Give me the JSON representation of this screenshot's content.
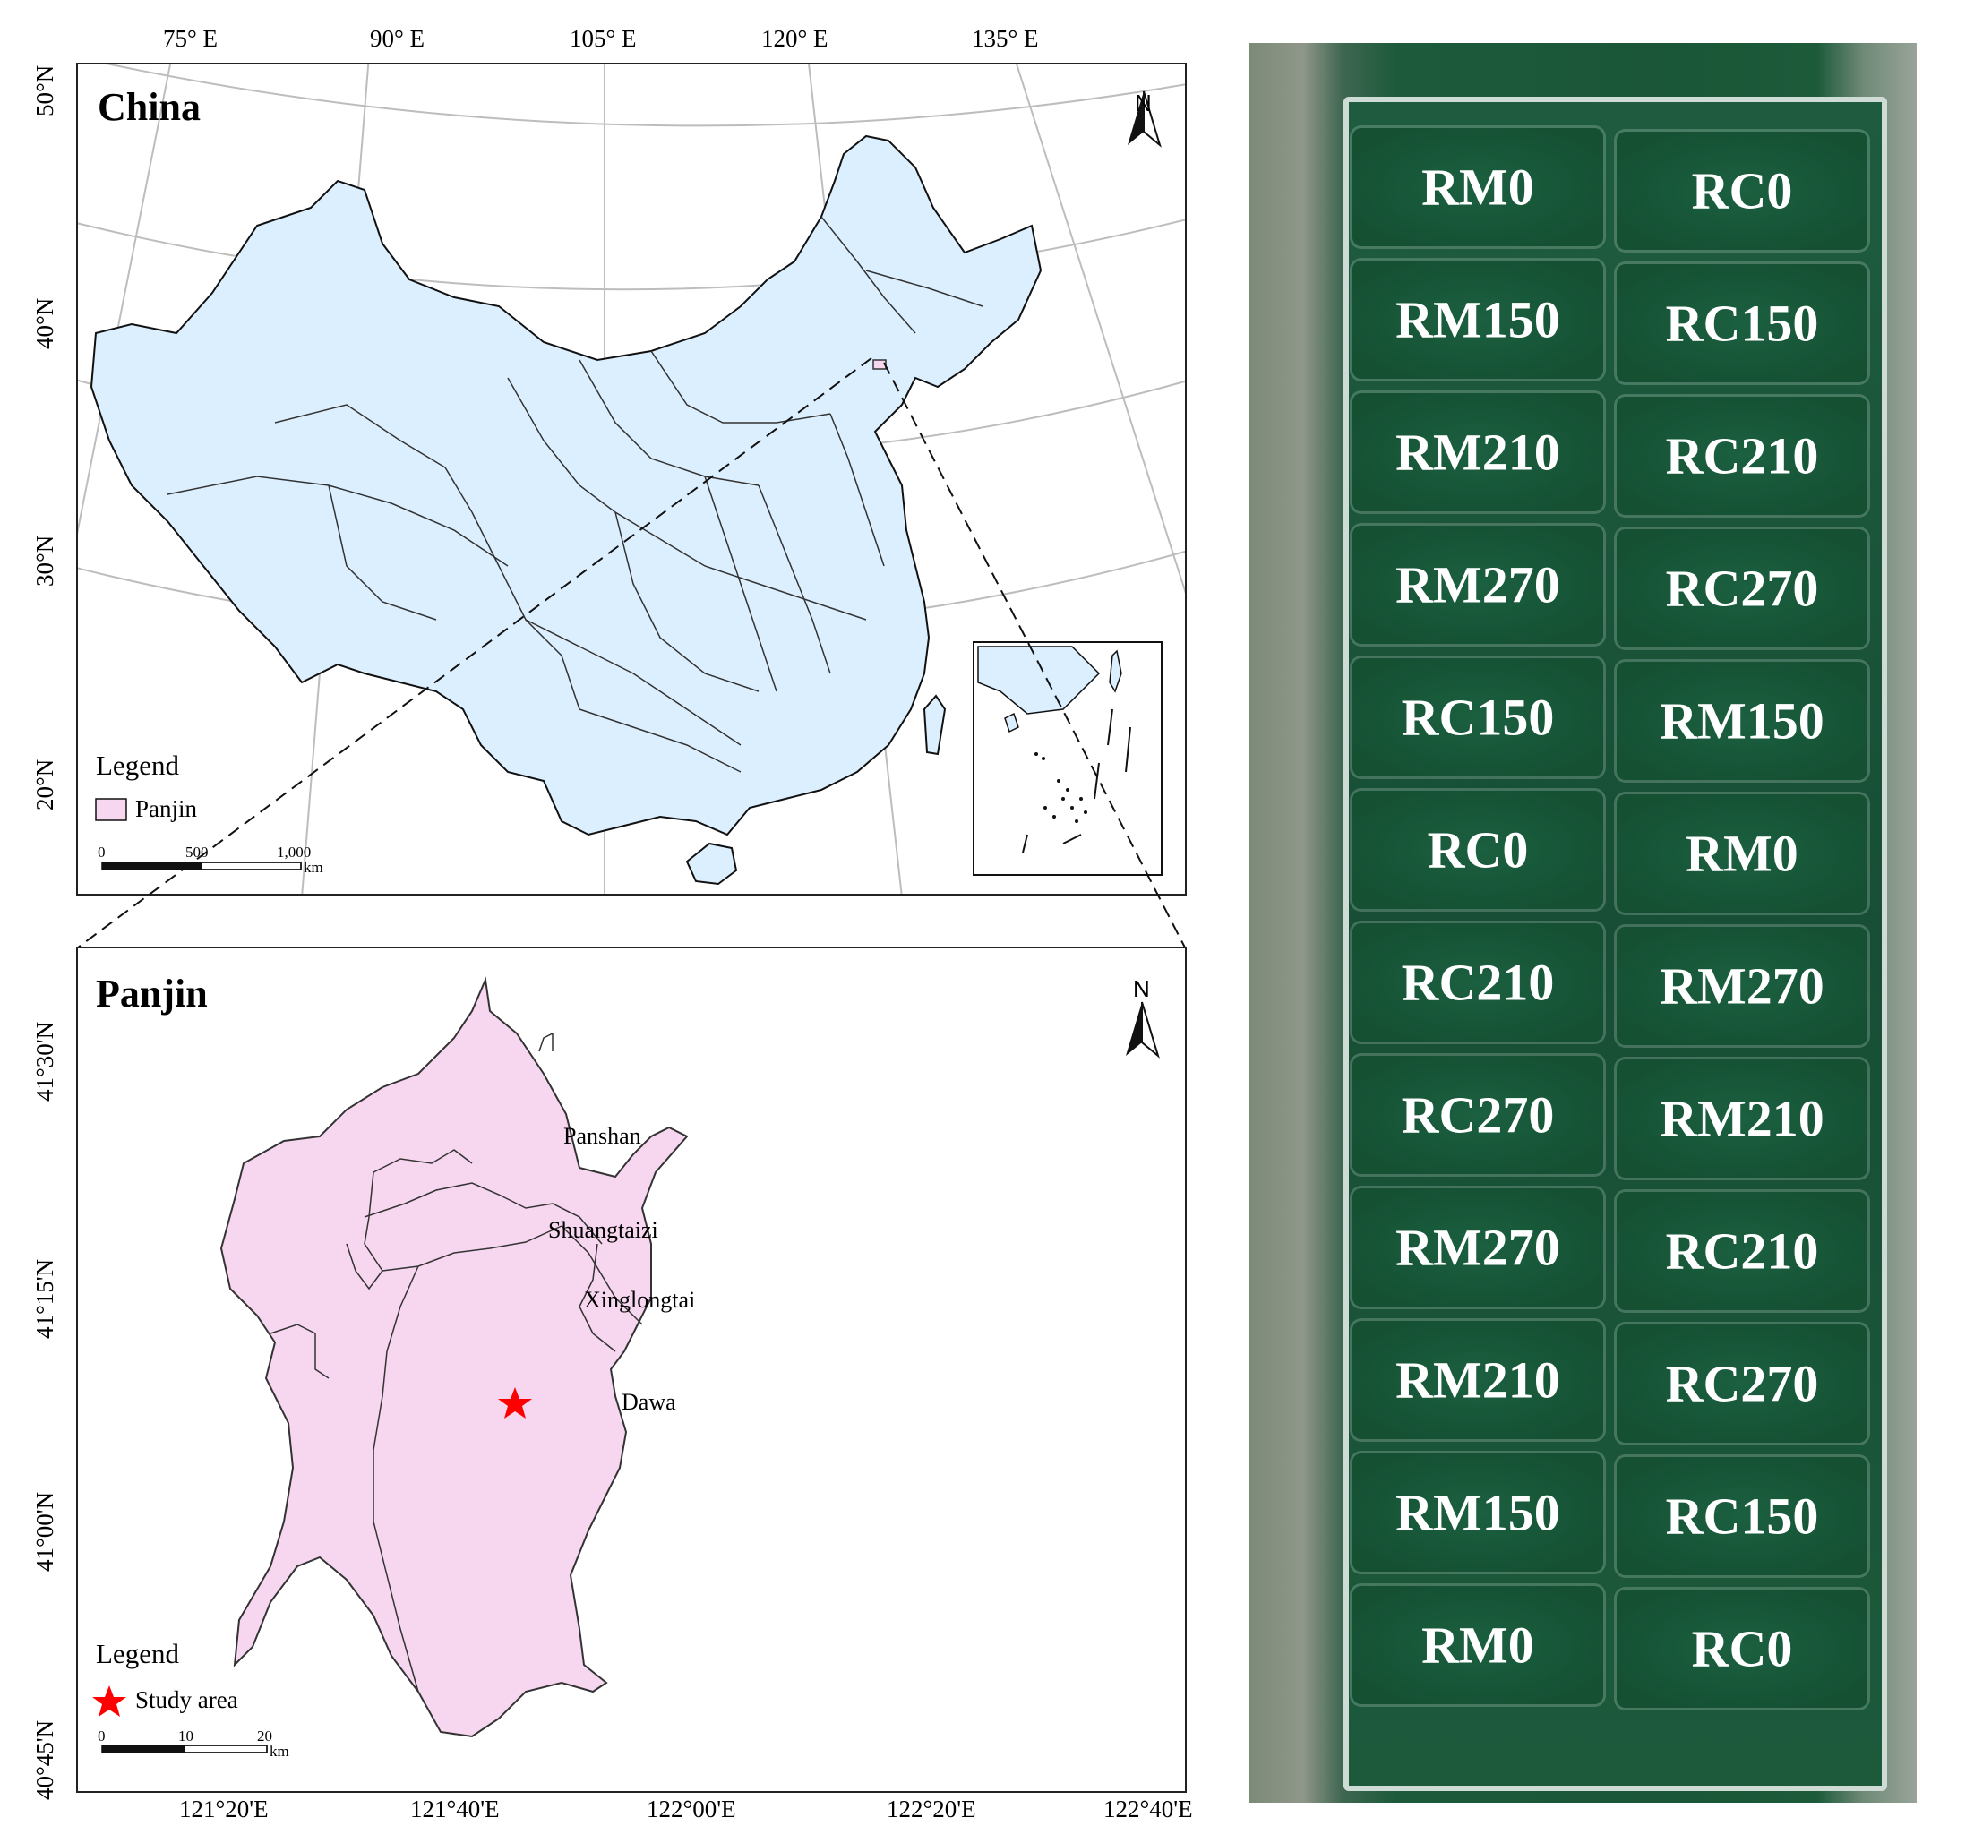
{
  "china_map": {
    "title": "China",
    "top_ticks": [
      "75° E",
      "90° E",
      "105° E",
      "120° E",
      "135° E"
    ],
    "left_ticks": [
      "50°N",
      "40°N",
      "30°N",
      "20°N"
    ],
    "legend_title": "Legend",
    "legend_item": "Panjin",
    "north": "N",
    "scale_labels": [
      "0",
      "500",
      "1,000",
      "km"
    ],
    "colors": {
      "land": "#dcefff",
      "highlight": "#f7d6ef",
      "graticule": "#bdbdbd"
    }
  },
  "panjin_map": {
    "title": "Panjin",
    "bottom_ticks": [
      "121°20'E",
      "121°40'E",
      "122°00'E",
      "122°20'E",
      "122°40'E"
    ],
    "left_ticks": [
      "41°30'N",
      "41°15'N",
      "41°00'N",
      "40°45'N"
    ],
    "regions": [
      "Panshan",
      "Shuangtaizi",
      "Xinglongtai",
      "Dawa"
    ],
    "legend_title": "Legend",
    "legend_item": "Study area",
    "north": "N",
    "scale_labels": [
      "0",
      "10",
      "20",
      "km"
    ],
    "colors": {
      "land": "#f7d6ef",
      "star": "#ff0000"
    }
  },
  "field_plots": {
    "rows": [
      [
        "RM0",
        "RC0"
      ],
      [
        "RM150",
        "RC150"
      ],
      [
        "RM210",
        "RC210"
      ],
      [
        "RM270",
        "RC270"
      ],
      [
        "RC150",
        "RM150"
      ],
      [
        "RC0",
        "RM0"
      ],
      [
        "RC210",
        "RM270"
      ],
      [
        "RC270",
        "RM210"
      ],
      [
        "RM270",
        "RC210"
      ],
      [
        "RM210",
        "RC270"
      ],
      [
        "RM150",
        "RC150"
      ],
      [
        "RM0",
        "RC0"
      ]
    ]
  }
}
